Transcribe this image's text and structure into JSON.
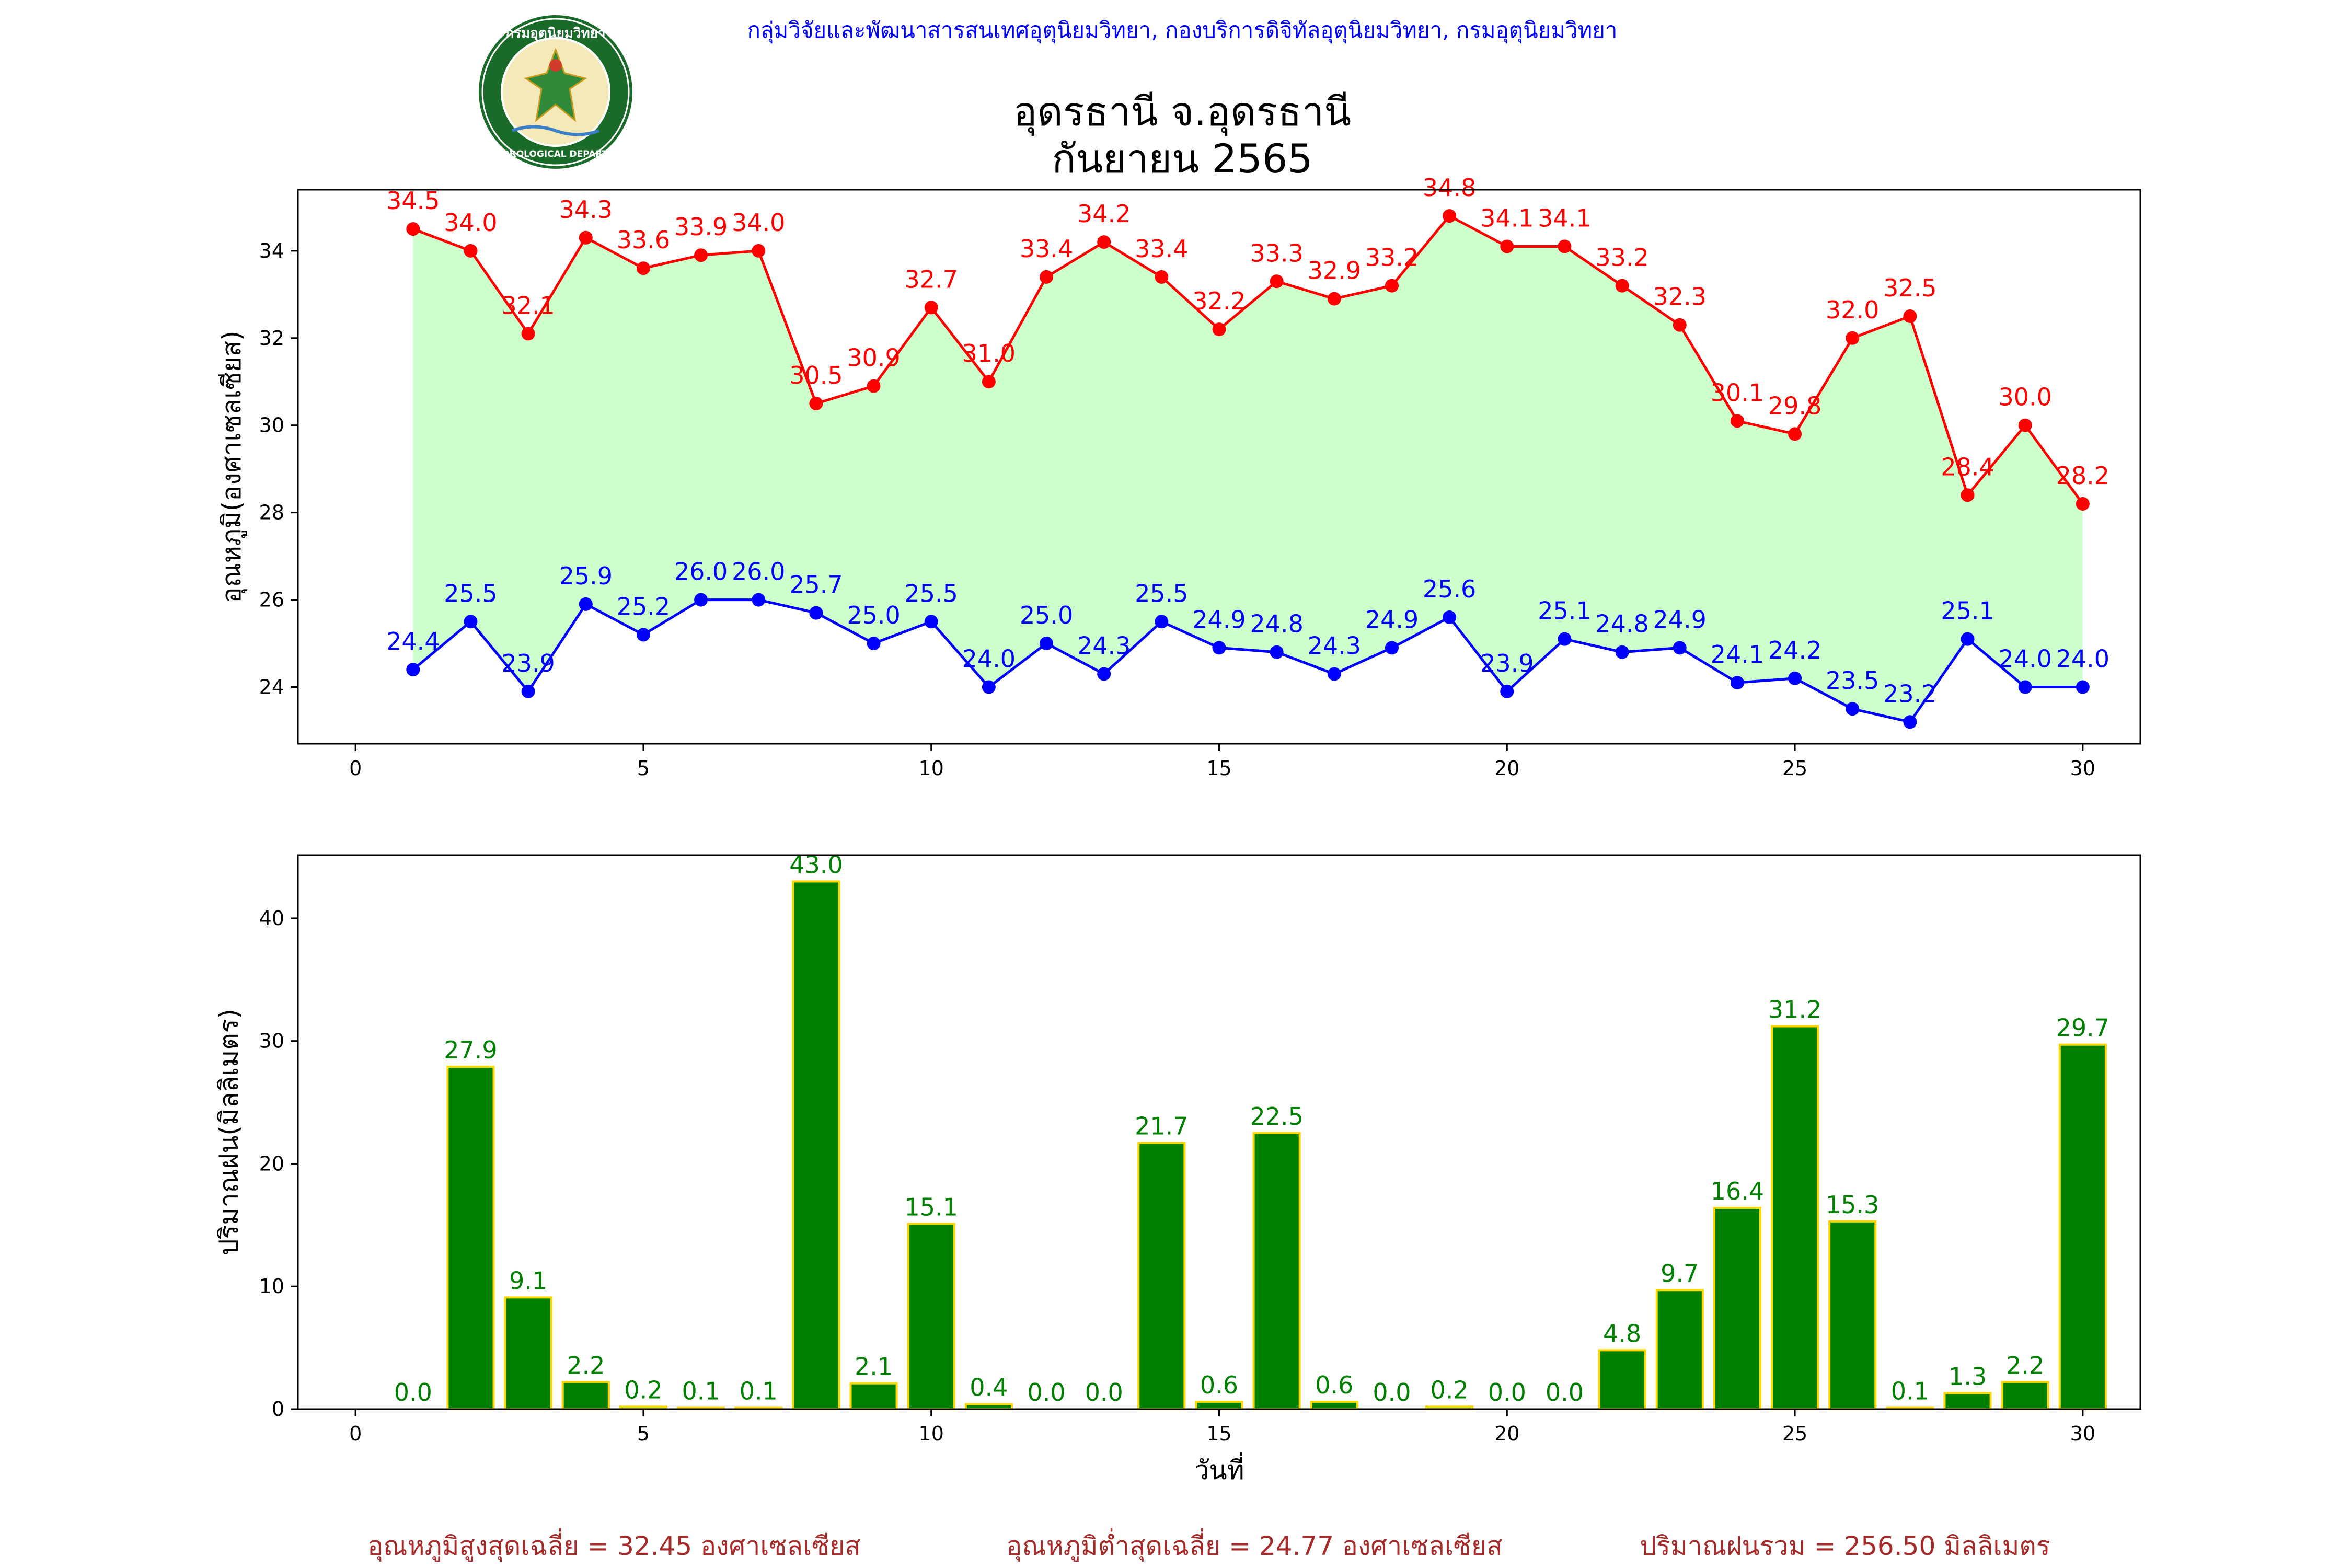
{
  "header": {
    "organization": "กลุ่มวิจัยและพัฒนาสารสนเทศอุตุนิยมวิทยา, กองบริการดิจิทัลอุตุนิยมวิทยา, กรมอุตุนิยมวิทยา",
    "title_line1": "อุดรธานี จ.อุดรธานี",
    "title_line2": "กันยายน 2565",
    "logo_text_top": "กรมอุตุนิยมวิทยา",
    "logo_text_bottom": "METEOROLOGICAL DEPARTMENT"
  },
  "colors": {
    "max_temp": "#ff0000",
    "min_temp": "#0000ff",
    "fill": "#ccffcc",
    "rain_bar": "#008000",
    "rain_edge": "#ffd700",
    "rain_label": "#008000",
    "header_blue": "#0000ff",
    "summary": "#a52a2a"
  },
  "chart_data": [
    {
      "type": "line",
      "ylabel": "อุณหภูมิ(องศาเซลเซียส)",
      "xlim": [
        -1,
        31
      ],
      "ylim": [
        22.7,
        35.4
      ],
      "xticks": [
        0,
        5,
        10,
        15,
        20,
        25,
        30
      ],
      "yticks": [
        24,
        26,
        28,
        30,
        32,
        34
      ],
      "x": [
        1,
        2,
        3,
        4,
        5,
        6,
        7,
        8,
        9,
        10,
        11,
        12,
        13,
        14,
        15,
        16,
        17,
        18,
        19,
        20,
        21,
        22,
        23,
        24,
        25,
        26,
        27,
        28,
        29,
        30
      ],
      "series": [
        {
          "key": "max",
          "values": [
            34.5,
            34.0,
            32.1,
            34.3,
            33.6,
            33.9,
            34.0,
            30.5,
            30.9,
            32.7,
            31.0,
            33.4,
            34.2,
            33.4,
            32.2,
            33.3,
            32.9,
            33.2,
            34.8,
            34.1,
            34.1,
            33.2,
            32.3,
            30.1,
            29.8,
            32.0,
            32.5,
            28.4,
            30.0,
            28.2
          ]
        },
        {
          "key": "min",
          "values": [
            24.4,
            25.5,
            23.9,
            25.9,
            25.2,
            26.0,
            26.0,
            25.7,
            25.0,
            25.5,
            24.0,
            25.0,
            24.3,
            25.5,
            24.9,
            24.8,
            24.3,
            24.9,
            25.6,
            23.9,
            25.1,
            24.8,
            24.9,
            24.1,
            24.2,
            23.5,
            23.2,
            25.1,
            24.0,
            24.0
          ]
        }
      ]
    },
    {
      "type": "bar",
      "ylabel": "ปริมาณฝน(มิลลิเมตร)",
      "xlabel": "วันที่",
      "xlim": [
        -1,
        31
      ],
      "ylim": [
        0,
        45.15
      ],
      "xticks": [
        0,
        5,
        10,
        15,
        20,
        25,
        30
      ],
      "yticks": [
        0,
        10,
        20,
        30,
        40
      ],
      "x": [
        1,
        2,
        3,
        4,
        5,
        6,
        7,
        8,
        9,
        10,
        11,
        12,
        13,
        14,
        15,
        16,
        17,
        18,
        19,
        20,
        21,
        22,
        23,
        24,
        25,
        26,
        27,
        28,
        29,
        30
      ],
      "values": [
        0.0,
        27.9,
        9.1,
        2.2,
        0.2,
        0.1,
        0.1,
        43.0,
        2.1,
        15.1,
        0.4,
        0.0,
        0.0,
        21.7,
        0.6,
        22.5,
        0.6,
        0.0,
        0.2,
        0.0,
        0.0,
        4.8,
        9.7,
        16.4,
        31.2,
        15.3,
        0.1,
        1.3,
        2.2,
        29.7
      ]
    }
  ],
  "summary": {
    "avg_max": "อุณหภูมิสูงสุดเฉลี่ย = 32.45 องศาเซลเซียส",
    "avg_min": "อุณหภูมิต่ำสุดเฉลี่ย = 24.77 องศาเซลเซียส",
    "total_rain": "ปริมาณฝนรวม = 256.50 มิลลิเมตร"
  }
}
